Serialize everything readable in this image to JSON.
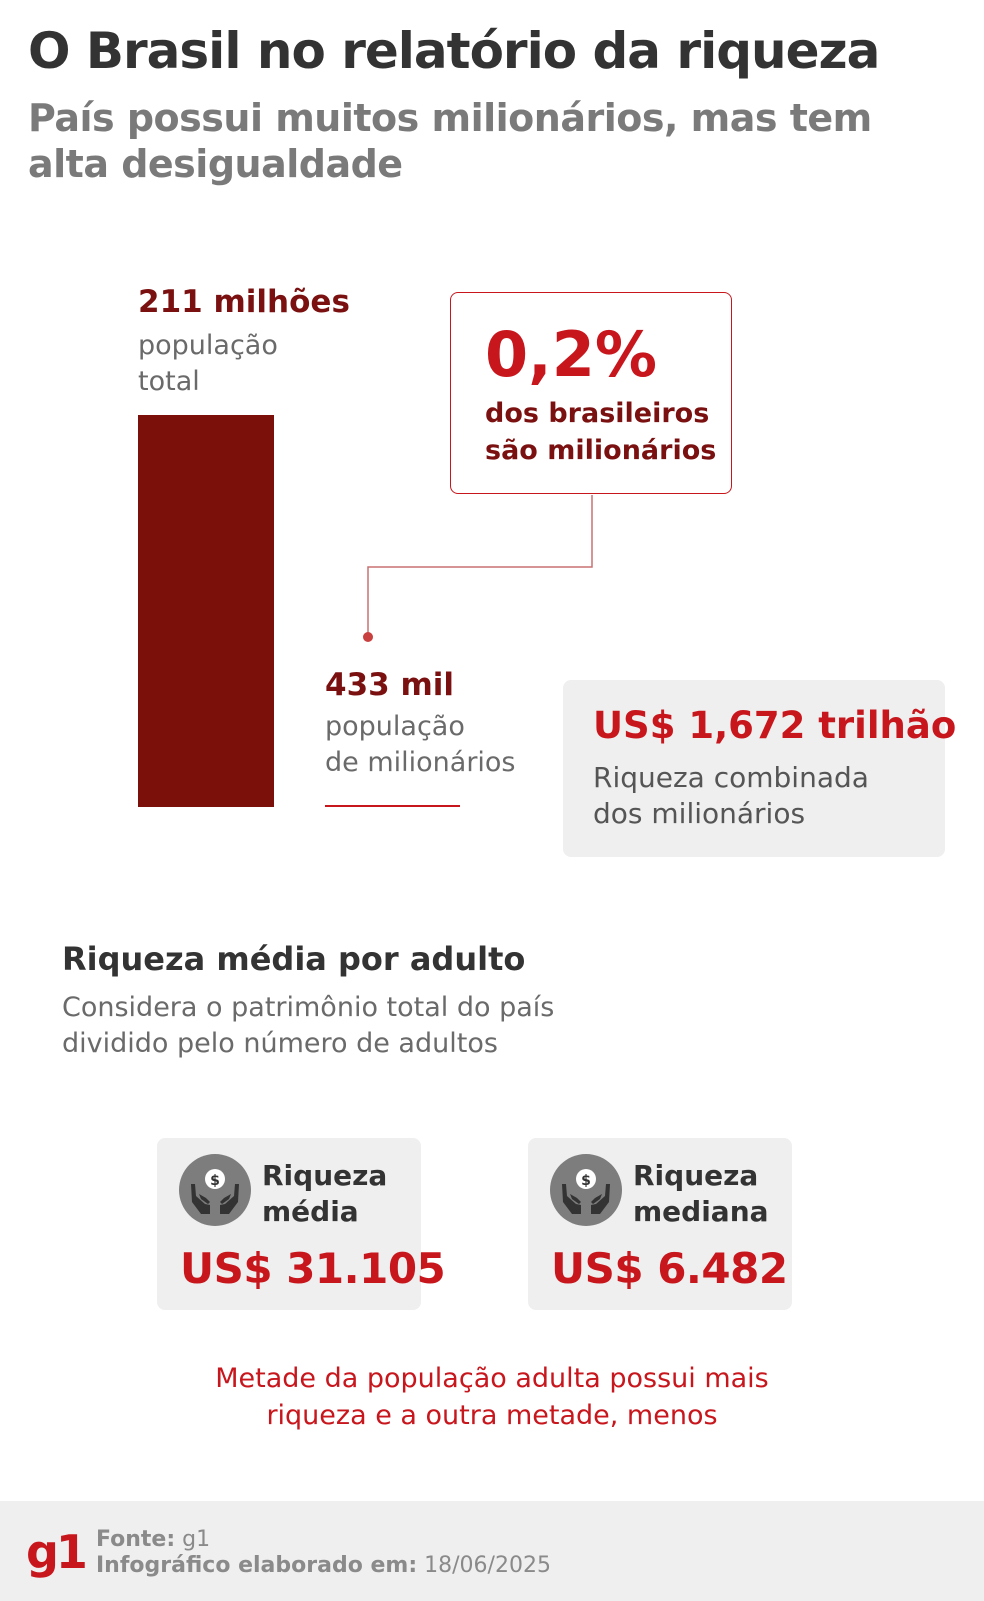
{
  "header": {
    "title": "O Brasil no relatório da riqueza",
    "subtitle": "País possui muitos milionários, mas tem alta desigualdade"
  },
  "population": {
    "total_value": "211 milhões",
    "total_label_line1": "população",
    "total_label_line2": "total",
    "millionaires_value": "433 mil",
    "millionaires_label_line1": "população",
    "millionaires_label_line2": "de milionários"
  },
  "share_box": {
    "value": "0,2%",
    "line1": "dos brasileiros",
    "line2": "são milionários"
  },
  "wealth_box": {
    "value": "US$ 1,672 trilhão",
    "line1": "Riqueza combinada",
    "line2": "dos milionários"
  },
  "average_section": {
    "title": "Riqueza média por adulto",
    "desc_line1": "Considera o patrimônio total do país",
    "desc_line2": "dividido pelo número de adultos"
  },
  "cards": {
    "mean": {
      "label_line1": "Riqueza",
      "label_line2": "média",
      "value": "US$ 31.105",
      "icon": "money-hands-icon"
    },
    "median": {
      "label_line1": "Riqueza",
      "label_line2": "mediana",
      "value": "US$ 6.482",
      "icon": "money-hands-icon"
    }
  },
  "note": {
    "line1": "Metade da população adulta possui mais",
    "line2": "riqueza e a outra metade, menos"
  },
  "footer": {
    "logo": "g1",
    "source_label": "Fonte:",
    "source_value": "g1",
    "date_label": "Infográfico elaborado em:",
    "date_value": "18/06/2025"
  },
  "colors": {
    "dark_red": "#7b0f0a",
    "red": "#c8161d",
    "grey_text": "#6a6a6a",
    "box_bg": "#efefef"
  },
  "chart_data": {
    "type": "bar",
    "categories": [
      "população total",
      "população de milionários"
    ],
    "values": [
      211000000,
      433000
    ],
    "value_labels": [
      "211 milhões",
      "433 mil"
    ],
    "share_percent": 0.2
  }
}
